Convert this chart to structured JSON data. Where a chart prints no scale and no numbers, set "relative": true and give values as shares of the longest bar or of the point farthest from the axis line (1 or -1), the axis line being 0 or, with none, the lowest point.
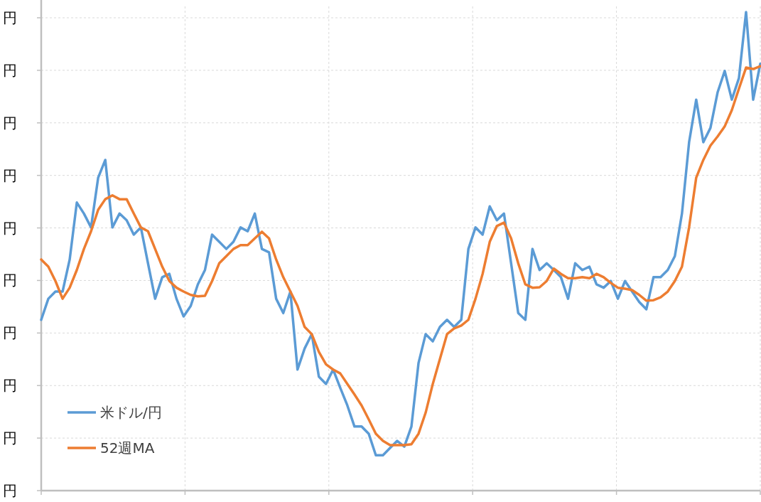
{
  "chart_data": {
    "type": "line",
    "relative": true,
    "grid": true,
    "legend": "bottom left",
    "categories": [
      null,
      null,
      null,
      null,
      null,
      null,
      null,
      null,
      null,
      null,
      null,
      null,
      null,
      null,
      null,
      null,
      null,
      null,
      null,
      null,
      null,
      null,
      null,
      null,
      null,
      null,
      null,
      null,
      null,
      null,
      null,
      null,
      null,
      null,
      null,
      null,
      null,
      null,
      null,
      null,
      null,
      null,
      null,
      null,
      null,
      null,
      null,
      null,
      null,
      null,
      null,
      null,
      null,
      null,
      null,
      null,
      null,
      null,
      null,
      null,
      null,
      null,
      null,
      null,
      null,
      null,
      null,
      null,
      null,
      null,
      null,
      null,
      null,
      null,
      null,
      null,
      null,
      null,
      null,
      null,
      null,
      null,
      null,
      null,
      null,
      null,
      null,
      null,
      null,
      null,
      null,
      null,
      null,
      null,
      null,
      null,
      null,
      null,
      null,
      null,
      null,
      null
    ],
    "annotations": [
      "円",
      "円",
      "円",
      "円",
      "円",
      "円",
      "円",
      "円",
      "円",
      "円"
    ],
    "series": [
      {
        "name": "米ドル/円",
        "color": "#5b9bd5",
        "values": [
          0.357,
          0.401,
          0.416,
          0.416,
          0.483,
          0.602,
          0.579,
          0.55,
          0.654,
          0.691,
          0.55,
          0.579,
          0.565,
          0.535,
          0.55,
          0.475,
          0.401,
          0.446,
          0.453,
          0.401,
          0.364,
          0.386,
          0.431,
          0.461,
          0.535,
          0.52,
          0.505,
          0.52,
          0.55,
          0.542,
          0.579,
          0.505,
          0.498,
          0.401,
          0.371,
          0.416,
          0.253,
          0.297,
          0.327,
          0.238,
          0.223,
          0.253,
          0.215,
          0.178,
          0.134,
          0.134,
          0.119,
          0.074,
          0.074,
          0.089,
          0.104,
          0.092,
          0.134,
          0.267,
          0.327,
          0.312,
          0.342,
          0.357,
          0.342,
          0.357,
          0.505,
          0.55,
          0.535,
          0.594,
          0.565,
          0.579,
          0.475,
          0.371,
          0.357,
          0.505,
          0.461,
          0.475,
          0.461,
          0.446,
          0.401,
          0.475,
          0.461,
          0.468,
          0.431,
          0.424,
          0.438,
          0.401,
          0.438,
          0.416,
          0.394,
          0.379,
          0.446,
          0.446,
          0.461,
          0.49,
          0.579,
          0.728,
          0.817,
          0.728,
          0.758,
          0.832,
          0.877,
          0.817,
          0.862,
          1.0,
          0.817,
          0.892
        ]
      },
      {
        "name": "52週MA",
        "color": "#ed7d31",
        "values": [
          0.483,
          0.468,
          0.438,
          0.401,
          0.424,
          0.461,
          0.505,
          0.542,
          0.587,
          0.609,
          0.617,
          0.609,
          0.609,
          0.579,
          0.55,
          0.542,
          0.505,
          0.468,
          0.438,
          0.424,
          0.416,
          0.409,
          0.406,
          0.407,
          0.438,
          0.475,
          0.49,
          0.505,
          0.513,
          0.513,
          0.527,
          0.541,
          0.527,
          0.483,
          0.446,
          0.416,
          0.386,
          0.342,
          0.327,
          0.29,
          0.264,
          0.253,
          0.245,
          0.223,
          0.201,
          0.178,
          0.149,
          0.119,
          0.104,
          0.095,
          0.095,
          0.095,
          0.097,
          0.119,
          0.163,
          0.223,
          0.275,
          0.327,
          0.339,
          0.345,
          0.357,
          0.401,
          0.453,
          0.52,
          0.553,
          0.56,
          0.527,
          0.475,
          0.431,
          0.424,
          0.425,
          0.438,
          0.464,
          0.453,
          0.444,
          0.444,
          0.446,
          0.444,
          0.453,
          0.446,
          0.434,
          0.424,
          0.422,
          0.419,
          0.409,
          0.397,
          0.398,
          0.404,
          0.416,
          0.438,
          0.468,
          0.55,
          0.654,
          0.691,
          0.721,
          0.74,
          0.761,
          0.795,
          0.84,
          0.884,
          0.881,
          0.887
        ]
      }
    ]
  }
}
